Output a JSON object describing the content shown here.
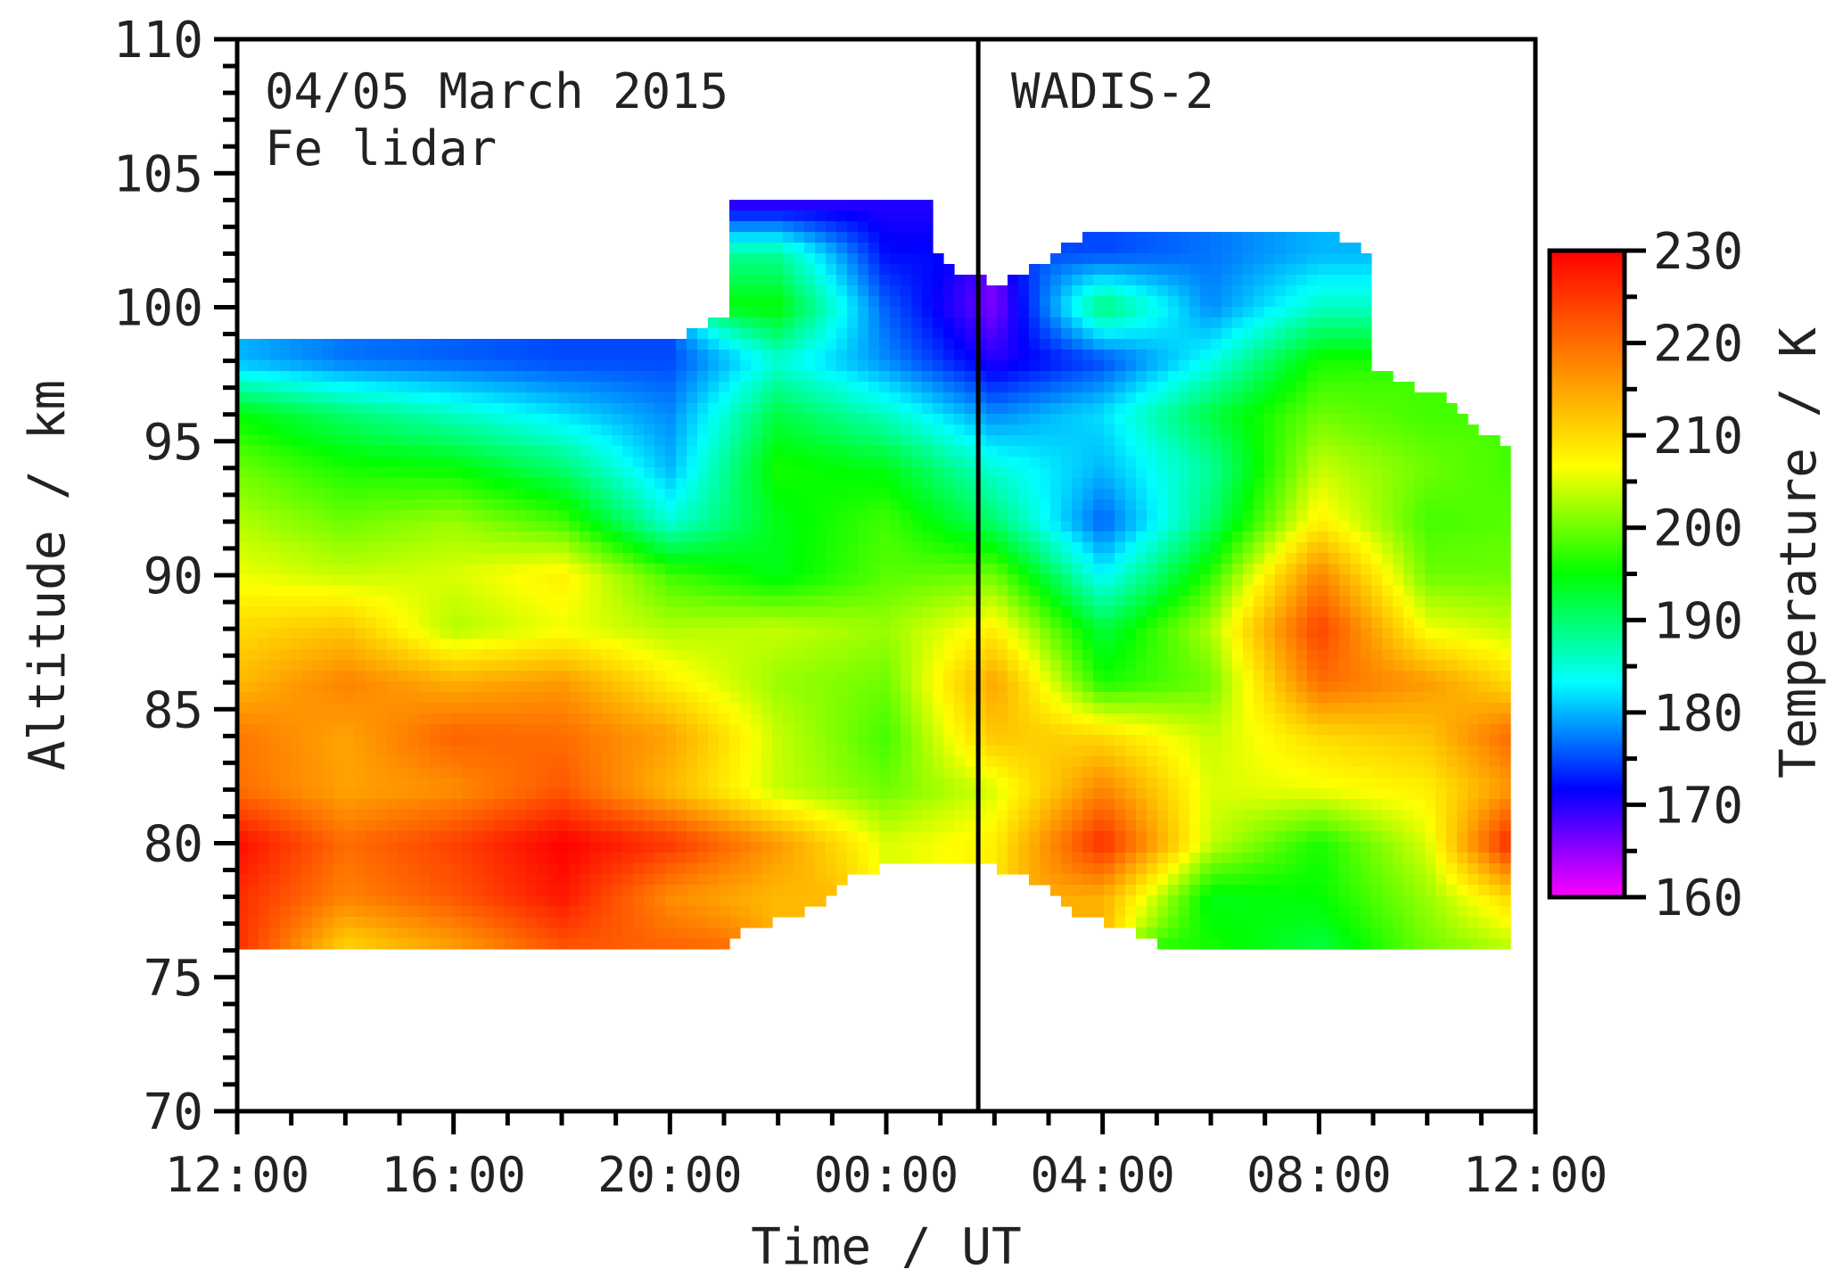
{
  "chart_data": {
    "type": "heatmap",
    "annotations": {
      "date_label": "04/05 March 2015",
      "instrument_label": "Fe lidar",
      "event_label": "WADIS-2"
    },
    "xlabel": "Time / UT",
    "ylabel": "Altitude / km",
    "colorbar_label": "Temperature / K",
    "x_ticks": [
      "12:00",
      "16:00",
      "20:00",
      "00:00",
      "04:00",
      "08:00",
      "12:00"
    ],
    "x_range_hours": [
      12,
      36
    ],
    "y_ticks": [
      70,
      75,
      80,
      85,
      90,
      95,
      100,
      105,
      110
    ],
    "ylim": [
      70,
      110
    ],
    "colorbar_ticks": [
      160,
      170,
      180,
      190,
      200,
      210,
      220,
      230
    ],
    "clim": [
      160,
      230
    ],
    "event_time_hours": 25.7,
    "colormap": [
      "#ff00ff",
      "#0000ff",
      "#00ffff",
      "#00ff00",
      "#ffff00",
      "#ff7f00",
      "#ff0000"
    ],
    "grid_x_hours": [
      12,
      14,
      16,
      18,
      20,
      22,
      24,
      26,
      28,
      30,
      32,
      34,
      35.5
    ],
    "grid_y_km": [
      76,
      78,
      80,
      82,
      84,
      86,
      88,
      90,
      92,
      94,
      96,
      98,
      100,
      102,
      104
    ],
    "temperature_K": [
      [
        226,
        210,
        215,
        222,
        221,
        null,
        null,
        null,
        null,
        196,
        192,
        200,
        203
      ],
      [
        226,
        218,
        222,
        228,
        217,
        213,
        null,
        null,
        214,
        194,
        195,
        202,
        210
      ],
      [
        229,
        220,
        224,
        230,
        225,
        216,
        205,
        208,
        226,
        204,
        196,
        205,
        226
      ],
      [
        220,
        215,
        217,
        222,
        213,
        204,
        200,
        205,
        218,
        205,
        206,
        208,
        216
      ],
      [
        219,
        215,
        221,
        220,
        215,
        204,
        198,
        212,
        210,
        204,
        210,
        212,
        220
      ],
      [
        213,
        218,
        214,
        216,
        208,
        202,
        200,
        215,
        196,
        200,
        220,
        216,
        210
      ],
      [
        210,
        212,
        203,
        206,
        203,
        204,
        202,
        208,
        192,
        203,
        224,
        206,
        204
      ],
      [
        206,
        204,
        205,
        208,
        198,
        194,
        199,
        200,
        183,
        197,
        218,
        200,
        200
      ],
      [
        203,
        200,
        202,
        198,
        185,
        194,
        198,
        190,
        176,
        190,
        208,
        198,
        199
      ],
      [
        200,
        196,
        195,
        190,
        180,
        196,
        194,
        185,
        180,
        188,
        204,
        200,
        198
      ],
      [
        195,
        190,
        186,
        182,
        178,
        192,
        186,
        178,
        182,
        192,
        200,
        198,
        null
      ],
      [
        180,
        177,
        176,
        175,
        175,
        185,
        178,
        170,
        175,
        184,
        196,
        null,
        null
      ],
      [
        null,
        null,
        null,
        null,
        null,
        195,
        176,
        166,
        190,
        178,
        186,
        null,
        null
      ],
      [
        null,
        null,
        null,
        null,
        null,
        188,
        172,
        null,
        175,
        177,
        180,
        null,
        null
      ],
      [
        null,
        null,
        null,
        null,
        null,
        168,
        170,
        null,
        null,
        null,
        null,
        null,
        null
      ]
    ]
  }
}
